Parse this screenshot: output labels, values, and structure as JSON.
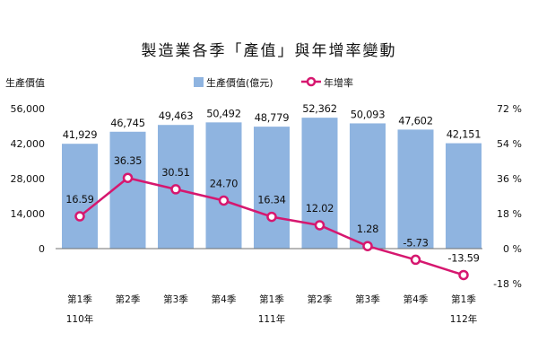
{
  "chart_data": {
    "type": "bar",
    "title": "製造業各季「產值」與年增率變動",
    "ylabel": "生產價值",
    "categories": [
      "第1季",
      "第2季",
      "第3季",
      "第4季",
      "第1季",
      "第2季",
      "第3季",
      "第4季",
      "第1季"
    ],
    "year_labels": [
      {
        "index": 0,
        "label": "110年"
      },
      {
        "index": 4,
        "label": "111年"
      },
      {
        "index": 8,
        "label": "112年"
      }
    ],
    "series": [
      {
        "name": "生產價值(億元)",
        "type": "bar",
        "axis": "left",
        "color": "#8fb4e0",
        "values": [
          41929,
          46745,
          49463,
          50492,
          48779,
          52362,
          50093,
          47602,
          42151
        ],
        "value_labels": [
          "41,929",
          "46,745",
          "49,463",
          "50,492",
          "48,779",
          "52,362",
          "50,093",
          "47,602",
          "42,151"
        ]
      },
      {
        "name": "年增率",
        "type": "line",
        "axis": "right",
        "color": "#d6176f",
        "values": [
          16.59,
          36.35,
          30.51,
          24.7,
          16.34,
          12.02,
          1.28,
          -5.73,
          -13.59
        ],
        "value_labels": [
          "16.59",
          "36.35",
          "30.51",
          "24.70",
          "16.34",
          "12.02",
          "1.28",
          "-5.73",
          "-13.59"
        ]
      }
    ],
    "ylim_left": [
      -14000,
      56000
    ],
    "yticks_left": [
      0,
      14000,
      28000,
      42000,
      56000
    ],
    "ytick_labels_left": [
      "0",
      "14,000",
      "28,000",
      "42,000",
      "56,000"
    ],
    "ylim_right": [
      -18,
      72
    ],
    "yticks_right": [
      -18,
      0,
      18,
      36,
      54,
      72
    ],
    "ytick_labels_right": [
      "-18 %",
      "0 %",
      "18 %",
      "36 %",
      "54 %",
      "72 %"
    ],
    "grid": false,
    "legend_position": "top-center"
  }
}
